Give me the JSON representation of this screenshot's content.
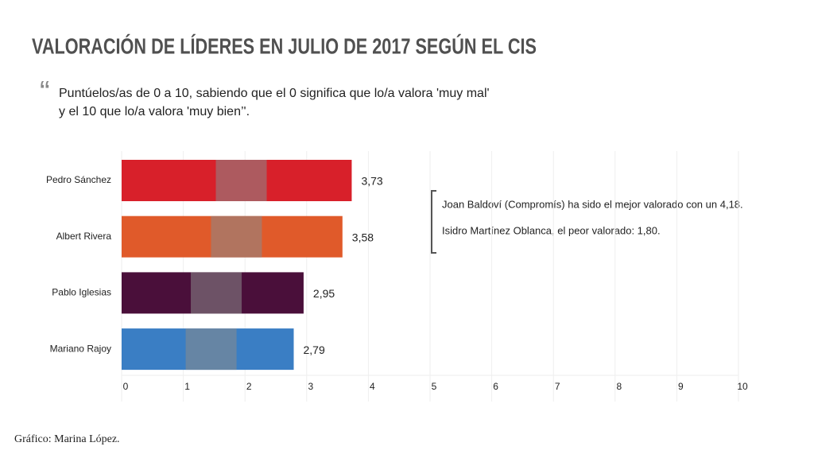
{
  "chart_data": {
    "type": "hbar",
    "title": "VALORACIÓN DE LÍDERES EN JULIO DE 2017 SEGÚN EL CIS",
    "quote_mark": "“",
    "subtitle_lines": [
      "Puntúelos/as de 0 a 10, sabiendo que el 0 significa que lo/a valora 'muy mal'",
      "y el 10 que lo/a valora 'muy bien’'."
    ],
    "categories": [
      "Pedro Sánchez",
      "Albert Rivera",
      "Pablo Iglesias",
      "Mariano Rajoy"
    ],
    "values": [
      3.73,
      3.58,
      2.95,
      2.79
    ],
    "value_labels": [
      "3,73",
      "3,58",
      "2,95",
      "2,79"
    ],
    "colors": [
      "#d8202a",
      "#e05a2a",
      "#4a0f3a",
      "#3a7ec4"
    ],
    "xlim": [
      0,
      10
    ],
    "xticks": [
      0,
      1,
      2,
      3,
      4,
      5,
      6,
      7,
      8,
      9,
      10
    ],
    "grid": true,
    "annotations": [
      "Joan Baldoví (Compromís) ha sido el mejor valorado con un 4,18.",
      "Isidro Martínez Oblanca, el peor valorado: 1,80."
    ],
    "credit": "Gráfico: Marina López."
  }
}
